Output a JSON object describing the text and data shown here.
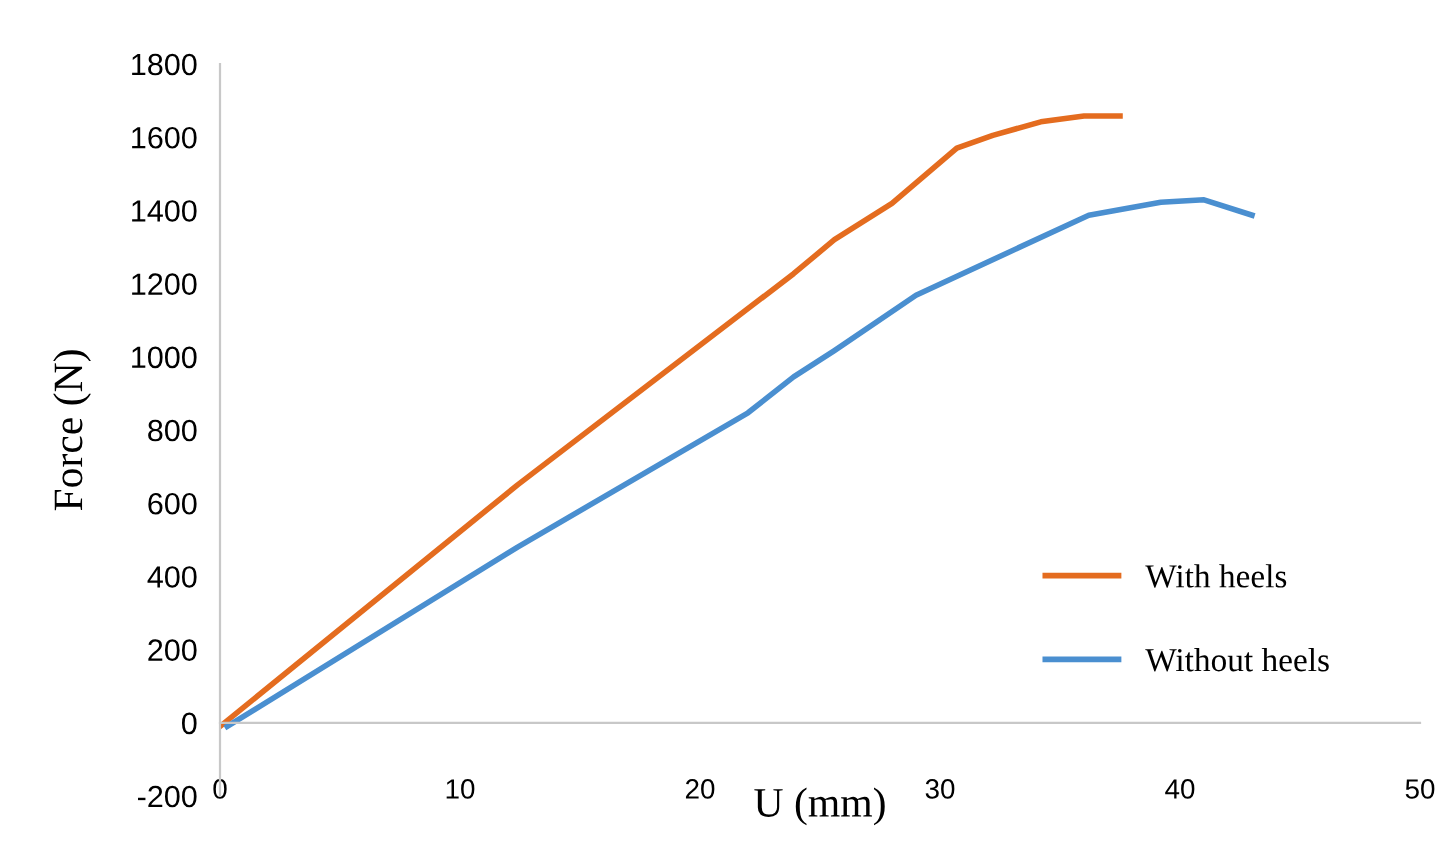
{
  "chart_data": {
    "type": "line",
    "xlabel": "U (mm)",
    "ylabel": "Force (N)",
    "xlim": [
      0,
      50
    ],
    "xticks": [
      0,
      10,
      20,
      30,
      40,
      50
    ],
    "ylim": [
      -200,
      1800
    ],
    "yticks": [
      -200,
      0,
      200,
      400,
      600,
      800,
      1000,
      1200,
      1400,
      1600,
      1800
    ],
    "grid": false,
    "legend": "bottom right",
    "marker": "none",
    "line_style": "solid",
    "series": [
      {
        "name": "With heels",
        "color": "#e46c1f",
        "x": [
          0,
          12.4,
          23.9,
          25.6,
          28.0,
          30.7,
          32.2,
          34.2,
          36.0,
          37.5
        ],
        "values": [
          -10,
          650,
          1227,
          1320,
          1419,
          1570,
          1605,
          1642,
          1658,
          1658
        ]
      },
      {
        "name": "Without heels",
        "color": "#4a8fd0",
        "x": [
          0.3,
          12.4,
          22.0,
          23.9,
          25.6,
          29.0,
          36.2,
          39.2,
          41.0,
          43.0
        ],
        "values": [
          -10,
          480,
          847,
          945,
          1017,
          1168,
          1387,
          1422,
          1429,
          1387
        ]
      }
    ]
  }
}
